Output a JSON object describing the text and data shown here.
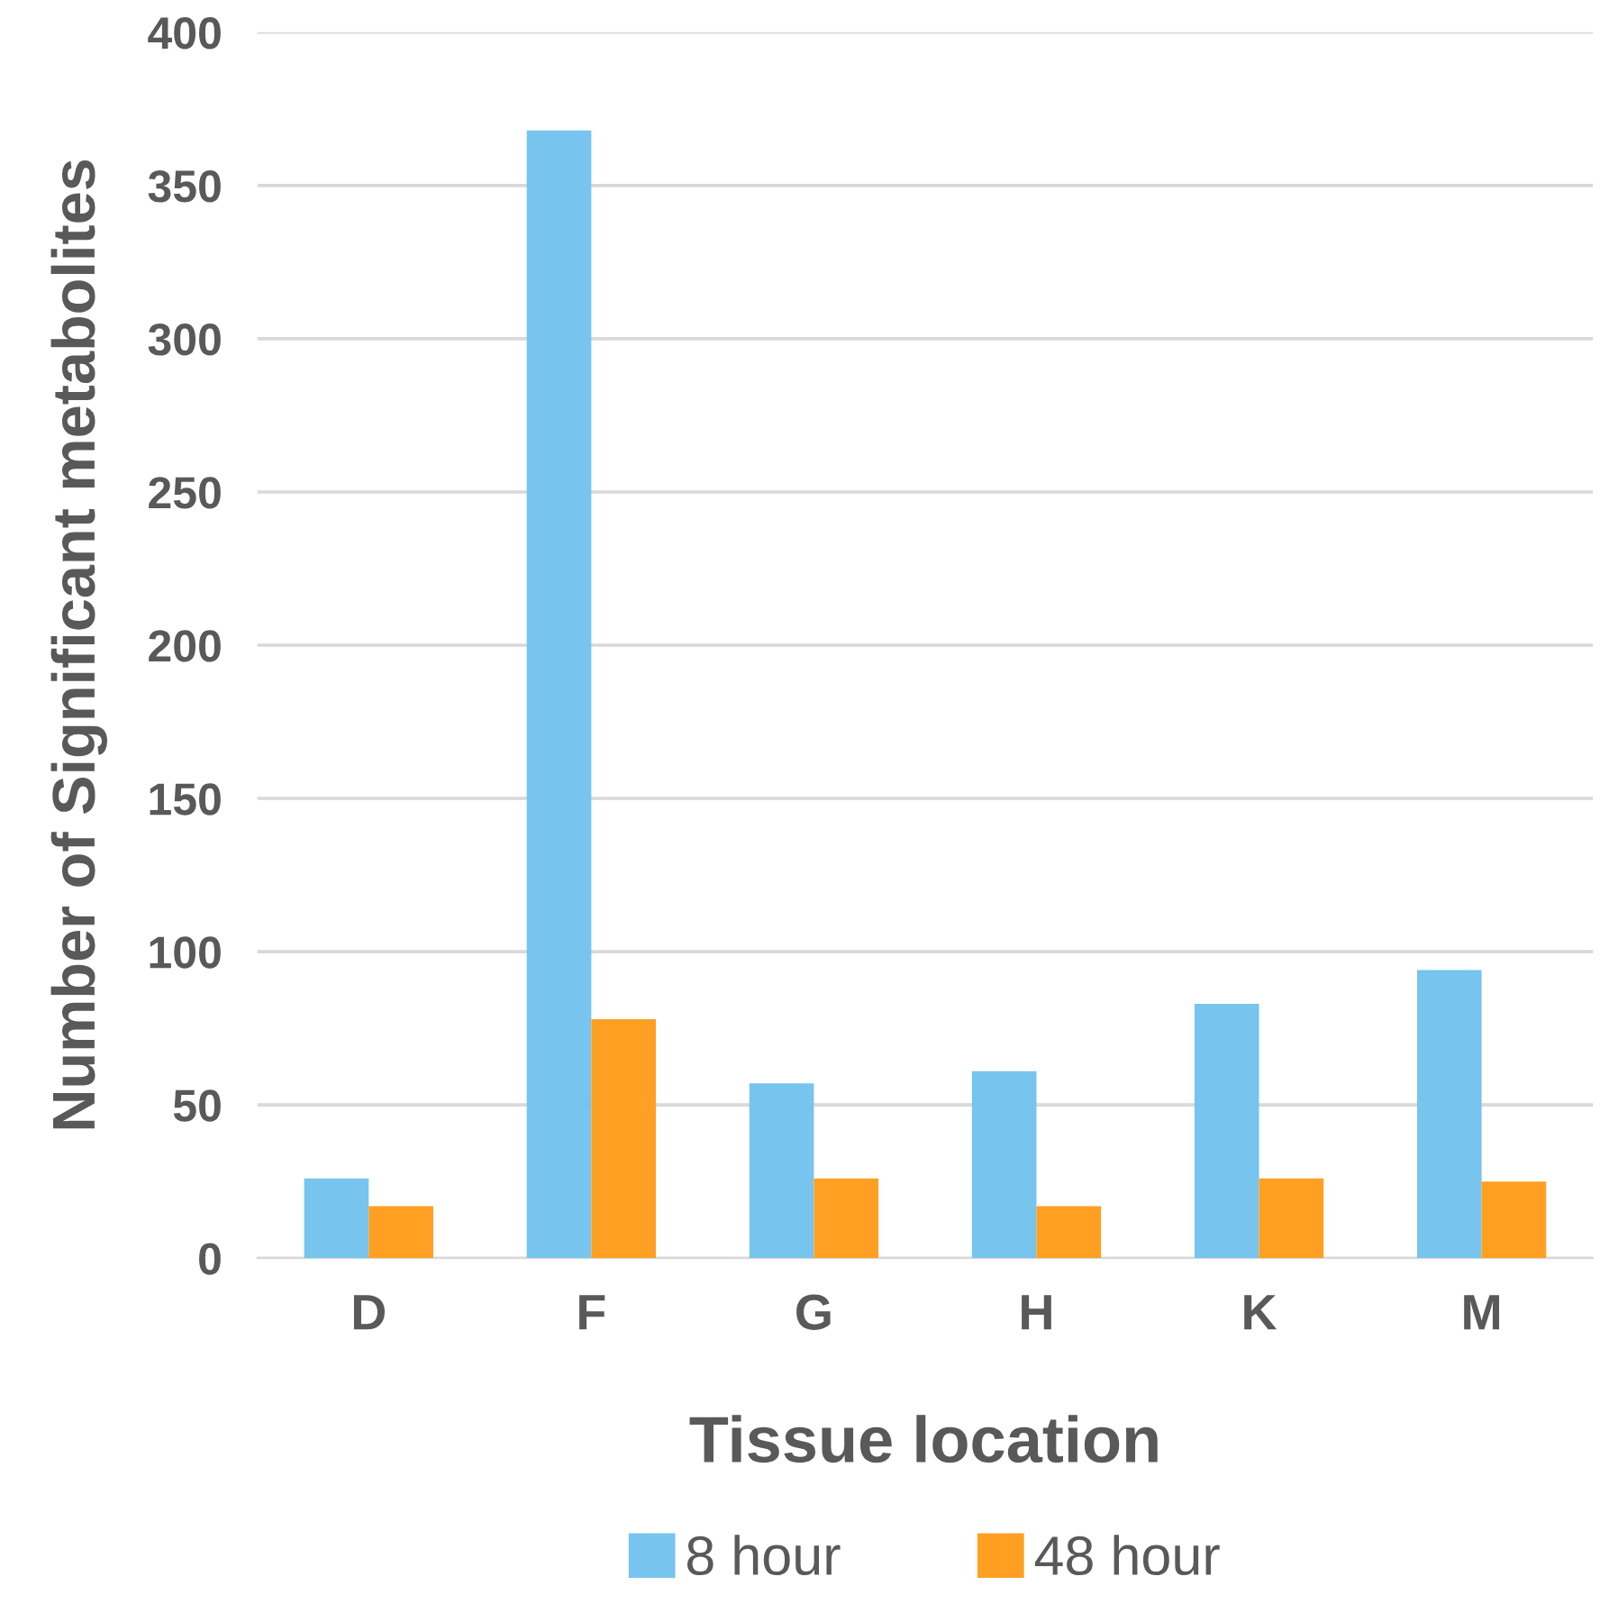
{
  "chart_data": {
    "type": "bar",
    "xlabel": "Tissue location",
    "ylabel": "Number of Significant metabolites",
    "categories": [
      "D",
      "F",
      "G",
      "H",
      "K",
      "M"
    ],
    "series": [
      {
        "name": "8 hour",
        "color": "#77c4ee",
        "values": [
          26,
          368,
          57,
          61,
          83,
          94
        ]
      },
      {
        "name": "48 hour",
        "color": "#ffa022",
        "values": [
          17,
          78,
          26,
          17,
          26,
          25
        ]
      }
    ],
    "ylim": [
      0,
      400
    ],
    "yticks": [
      0,
      50,
      100,
      150,
      200,
      250,
      300,
      350,
      400
    ],
    "grid": "y",
    "legend": "bottom"
  }
}
